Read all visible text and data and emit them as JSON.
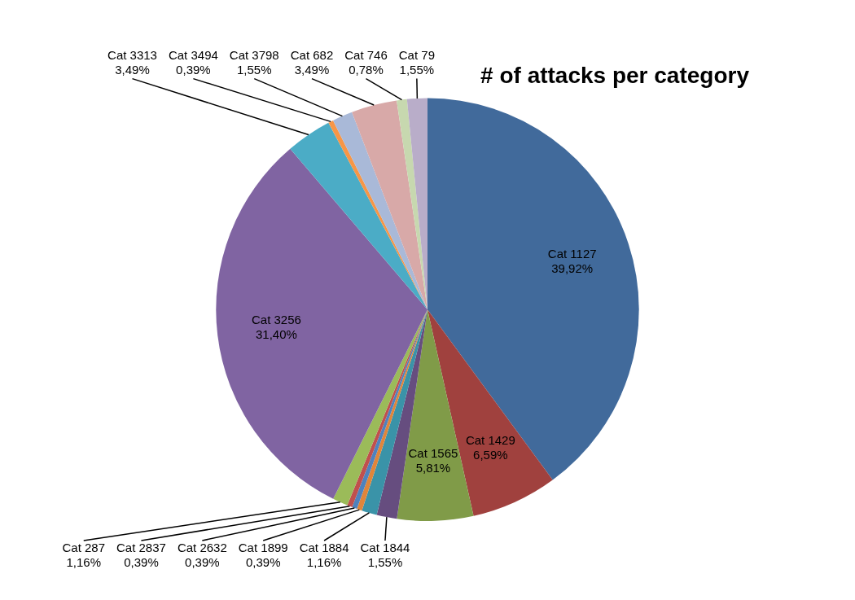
{
  "chart_data": {
    "type": "pie",
    "title": "# of attacks per category",
    "categories": [
      "Cat 1127",
      "Cat 1429",
      "Cat 1565",
      "Cat 1844",
      "Cat 1884",
      "Cat 1899",
      "Cat 2632",
      "Cat 2837",
      "Cat 287",
      "Cat 3256",
      "Cat 3313",
      "Cat 3494",
      "Cat 3798",
      "Cat 682",
      "Cat 746",
      "Cat 79"
    ],
    "values": [
      39.92,
      6.59,
      5.81,
      1.55,
      1.16,
      0.39,
      0.39,
      0.39,
      1.16,
      31.4,
      3.49,
      0.39,
      1.55,
      3.49,
      0.78,
      1.55
    ],
    "value_labels": [
      "39,92%",
      "6,59%",
      "5,81%",
      "1,55%",
      "1,16%",
      "0,39%",
      "0,39%",
      "0,39%",
      "1,16%",
      "31,40%",
      "3,49%",
      "0,39%",
      "1,55%",
      "3,49%",
      "0,78%",
      "1,55%"
    ],
    "colors": [
      "#416a9b",
      "#a0413e",
      "#809b48",
      "#664d7f",
      "#3a93a8",
      "#e0853a",
      "#4f82bd",
      "#c0504d",
      "#9bbb59",
      "#8064a2",
      "#4bacc6",
      "#f79646",
      "#a9b9d8",
      "#d8a9a8",
      "#c7d8af",
      "#b9adc9"
    ],
    "legend": false
  }
}
